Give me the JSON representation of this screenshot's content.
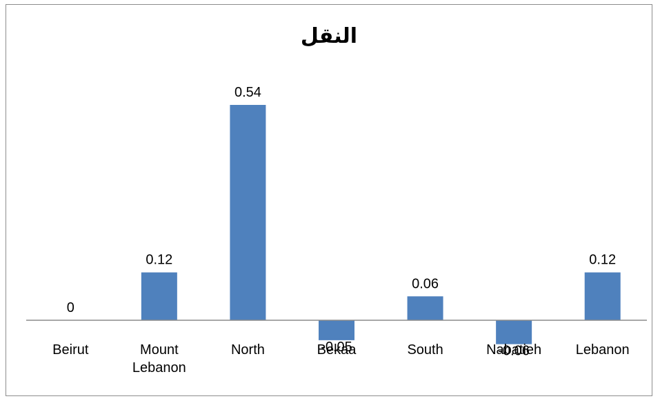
{
  "chart_data": {
    "type": "bar",
    "title": "النقل",
    "categories": [
      "Beirut",
      "Mount Lebanon",
      "North",
      "Bekaa",
      "South",
      "Nabatieh",
      "Lebanon"
    ],
    "category_lines": [
      [
        "Beirut"
      ],
      [
        "Mount",
        "Lebanon"
      ],
      [
        "North"
      ],
      [
        "Bekaa"
      ],
      [
        "South"
      ],
      [
        "Nabatieh"
      ],
      [
        "Lebanon"
      ]
    ],
    "values": [
      0,
      0.12,
      0.54,
      -0.05,
      0.06,
      -0.06,
      0.12
    ],
    "value_labels": [
      "0",
      "0.12",
      "0.54",
      "-0.05",
      "0.06",
      "-0.06",
      "0.12"
    ],
    "bar_color": "#4F81BD",
    "axis_color": "#8c8c8c",
    "grid": false,
    "legend": "none"
  }
}
